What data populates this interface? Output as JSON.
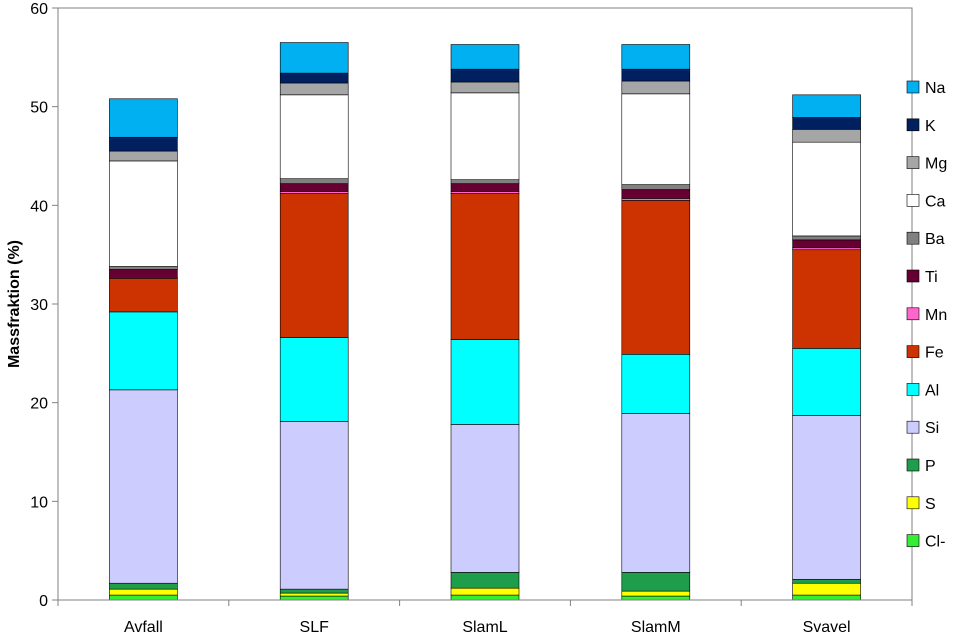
{
  "chart_data": {
    "type": "bar",
    "stacked": true,
    "title": "",
    "xlabel": "",
    "ylabel": "Massfraktion (%)",
    "ylim": [
      0,
      60
    ],
    "yticks": [
      0,
      10,
      20,
      30,
      40,
      50,
      60
    ],
    "grid": false,
    "legend_position": "right",
    "categories": [
      "Avfall",
      "SLF",
      "SlamL",
      "SlamM",
      "Svavel"
    ],
    "series": [
      {
        "name": "Cl-",
        "color": "#33EE33",
        "values": [
          0.5,
          0.4,
          0.5,
          0.4,
          0.5
        ]
      },
      {
        "name": "S",
        "color": "#FFFF00",
        "values": [
          0.6,
          0.3,
          0.7,
          0.5,
          1.2
        ]
      },
      {
        "name": "P",
        "color": "#1E9E4A",
        "values": [
          0.6,
          0.4,
          1.6,
          1.9,
          0.4
        ]
      },
      {
        "name": "Si",
        "color": "#CCCCFF",
        "values": [
          19.6,
          17.0,
          15.0,
          16.1,
          16.6
        ]
      },
      {
        "name": "Al",
        "color": "#00FFFF",
        "values": [
          7.9,
          8.5,
          8.6,
          6.0,
          6.8
        ]
      },
      {
        "name": "Fe",
        "color": "#CC3300",
        "values": [
          3.4,
          14.6,
          14.8,
          15.6,
          10.0
        ]
      },
      {
        "name": "Mn",
        "color": "#FF66CC",
        "values": [
          0.1,
          0.2,
          0.2,
          0.2,
          0.2
        ]
      },
      {
        "name": "Ti",
        "color": "#660033",
        "values": [
          0.8,
          0.8,
          0.8,
          0.9,
          0.8
        ]
      },
      {
        "name": "Ba",
        "color": "#808080",
        "values": [
          0.3,
          0.5,
          0.4,
          0.5,
          0.4
        ]
      },
      {
        "name": "Ca",
        "color": "#FFFFFF",
        "values": [
          10.7,
          8.5,
          8.8,
          9.2,
          9.5
        ]
      },
      {
        "name": "Mg",
        "color": "#A6A6A6",
        "values": [
          1.0,
          1.2,
          1.1,
          1.3,
          1.3
        ]
      },
      {
        "name": "K",
        "color": "#002060",
        "values": [
          1.4,
          1.0,
          1.3,
          1.2,
          1.2
        ]
      },
      {
        "name": "Na",
        "color": "#00B0F0",
        "values": [
          3.9,
          3.1,
          2.5,
          2.5,
          2.3
        ]
      }
    ]
  }
}
